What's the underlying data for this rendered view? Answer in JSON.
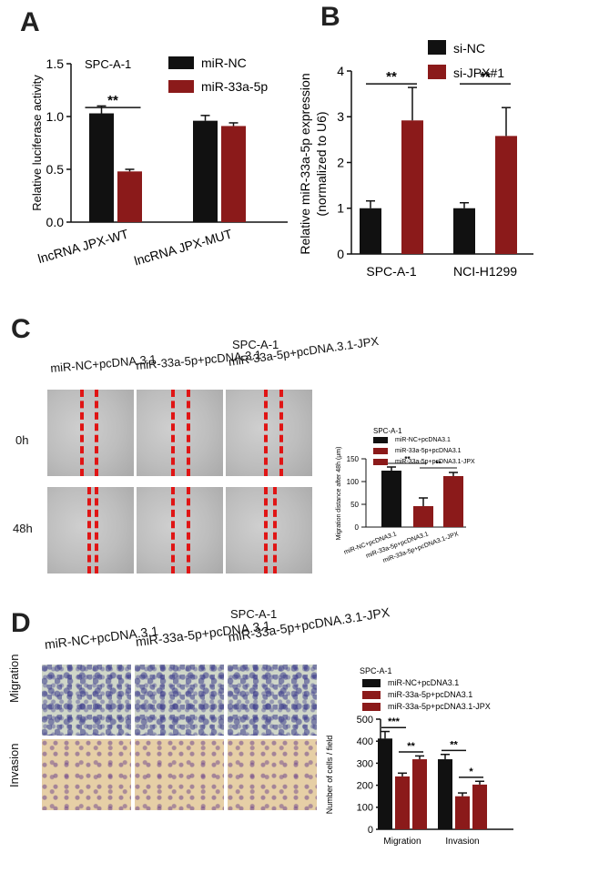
{
  "panels": {
    "A": "A",
    "B": "B",
    "C": "C",
    "D": "D"
  },
  "colors": {
    "black": "#111111",
    "red": "#8b1a1a",
    "dash": "#e01515"
  },
  "chart_data": [
    {
      "id": "A",
      "type": "bar",
      "subtitle": "SPC-A-1",
      "ylabel": "Relative luciferase activity",
      "ylim": [
        0,
        1.5
      ],
      "yticks": [
        "0.0",
        "0.5",
        "1.0",
        "1.5"
      ],
      "ytick_values": [
        0,
        0.5,
        1.0,
        1.5
      ],
      "categories": [
        "lncRNA JPX-WT",
        "lncRNA JPX-MUT"
      ],
      "series": [
        {
          "name": "miR-NC",
          "color": "#111111",
          "values": [
            1.03,
            0.96
          ],
          "errors": [
            0.07,
            0.05
          ]
        },
        {
          "name": "miR-33a-5p",
          "color": "#8b1a1a",
          "values": [
            0.48,
            0.91
          ],
          "errors": [
            0.02,
            0.03
          ]
        }
      ],
      "significance": [
        {
          "group": 0,
          "label": "**"
        }
      ]
    },
    {
      "id": "B",
      "type": "bar",
      "ylabel": "Relative miR-33a-5p  expression",
      "ylabel2": "(normalized to U6)",
      "ylim": [
        0,
        4
      ],
      "yticks": [
        "0",
        "1",
        "2",
        "3",
        "4"
      ],
      "ytick_values": [
        0,
        1,
        2,
        3,
        4
      ],
      "categories": [
        "SPC-A-1",
        "NCI-H1299"
      ],
      "series": [
        {
          "name": "si-NC",
          "color": "#111111",
          "values": [
            1.0,
            1.0
          ],
          "errors": [
            0.16,
            0.12
          ]
        },
        {
          "name": "si-JPX#1",
          "color": "#8b1a1a",
          "values": [
            2.92,
            2.58
          ],
          "errors": [
            0.72,
            0.62
          ]
        }
      ],
      "significance": [
        {
          "group": 0,
          "label": "**"
        },
        {
          "group": 1,
          "label": "**"
        }
      ]
    },
    {
      "id": "C",
      "type": "bar",
      "subtitle": "SPC-A-1",
      "ylabel": "Migration distance after 48h (μm)",
      "ylim": [
        0,
        150
      ],
      "yticks": [
        "0",
        "50",
        "100",
        "150"
      ],
      "ytick_values": [
        0,
        50,
        100,
        150
      ],
      "categories": [
        "miR-NC+pcDNA3.1",
        "miR-33a-5p+pcDNA3.1",
        "miR-33a-5p+pcDNA3.1-JPX"
      ],
      "values": [
        124,
        46,
        112
      ],
      "errors": [
        8,
        18,
        8
      ],
      "colors": [
        "#111111",
        "#8b1a1a",
        "#8b1a1a"
      ],
      "legend": [
        "miR-NC+pcDNA3.1",
        "miR-33a-5p+pcDNA3.1",
        "miR-33a-5p+pcDNA3.1-JPX"
      ],
      "significance": [
        {
          "from": 0,
          "to": 1,
          "label": "**"
        },
        {
          "from": 1,
          "to": 2,
          "label": "**"
        }
      ]
    },
    {
      "id": "D",
      "type": "bar",
      "subtitle": "SPC-A-1",
      "ylabel": "Number of cells / field",
      "ylim": [
        0,
        500
      ],
      "yticks": [
        "0",
        "100",
        "200",
        "300",
        "400",
        "500"
      ],
      "ytick_values": [
        0,
        100,
        200,
        300,
        400,
        500
      ],
      "categories": [
        "Migration",
        "Invasion"
      ],
      "series": [
        {
          "name": "miR-NC+pcDNA3.1",
          "color": "#111111",
          "values": [
            412,
            318
          ],
          "errors": [
            32,
            22
          ]
        },
        {
          "name": "miR-33a-5p+pcDNA3.1",
          "color": "#8b1a1a",
          "values": [
            240,
            150
          ],
          "errors": [
            15,
            15
          ]
        },
        {
          "name": "miR-33a-5p+pcDNA3.1-JPX",
          "color": "#8b1a1a",
          "values": [
            318,
            203
          ],
          "errors": [
            15,
            15
          ]
        }
      ],
      "significance": [
        {
          "group": 0,
          "from": 0,
          "to": 1,
          "label": "***"
        },
        {
          "group": 0,
          "from": 1,
          "to": 2,
          "label": "**"
        },
        {
          "group": 1,
          "from": 0,
          "to": 1,
          "label": "**"
        },
        {
          "group": 1,
          "from": 1,
          "to": 2,
          "label": "*"
        }
      ]
    }
  ],
  "panel_c": {
    "title": "SPC-A-1",
    "columns": [
      "miR-NC+pcDNA.3.1",
      "miR-33a-5p+pcDNA.3.1",
      "miR-33a-5p+pcDNA.3.1-JPX"
    ],
    "rows": [
      "0h",
      "48h"
    ]
  },
  "panel_d": {
    "title": "SPC-A-1",
    "columns": [
      "miR-NC+pcDNA.3.1",
      "miR-33a-5p+pcDNA.3.1",
      "miR-33a-5p+pcDNA.3.1-JPX"
    ],
    "rows": [
      "Migration",
      "Invasion"
    ]
  }
}
